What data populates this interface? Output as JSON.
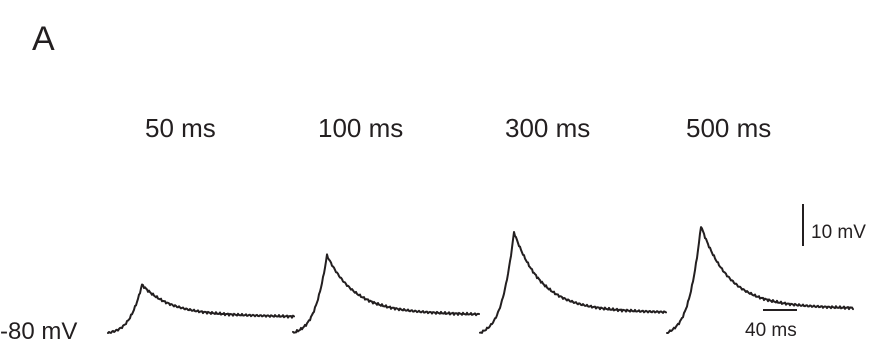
{
  "panel_label": "A",
  "chart_data": {
    "type": "line",
    "title": "",
    "xlabel": "",
    "ylabel": "",
    "baseline_label": "-80 mV",
    "baseline_mV": -80,
    "scale_bars": {
      "voltage": {
        "label": "10 mV",
        "value_mV": 10
      },
      "time": {
        "label": "40 ms",
        "value_ms": 40
      }
    },
    "series": [
      {
        "name": "50 ms",
        "peak_mV": 11.5,
        "rise_ms": 40,
        "end_mV": 4.5
      },
      {
        "name": "100 ms",
        "peak_mV": 18.5,
        "rise_ms": 40,
        "end_mV": 5.0
      },
      {
        "name": "300 ms",
        "peak_mV": 24.0,
        "rise_ms": 40,
        "end_mV": 5.5
      },
      {
        "name": "500 ms",
        "peak_mV": 25.5,
        "rise_ms": 40,
        "end_mV": 6.5
      }
    ]
  }
}
